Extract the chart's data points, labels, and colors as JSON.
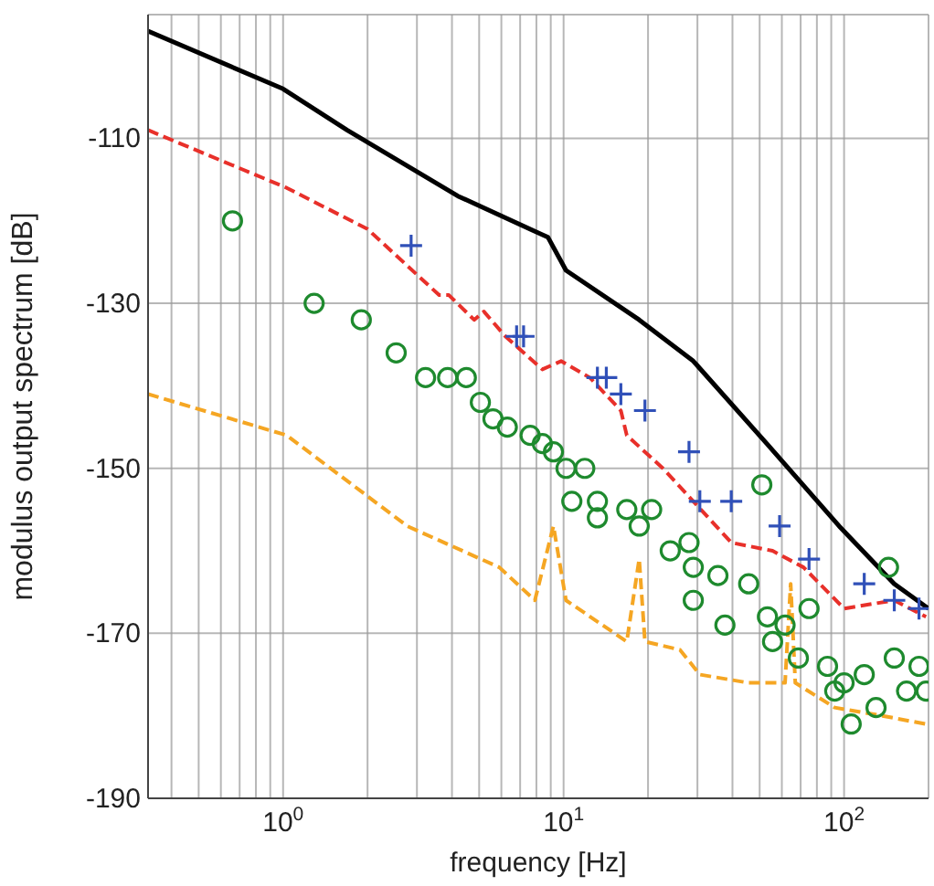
{
  "chart_data": {
    "type": "line",
    "xlabel": "frequency [Hz]",
    "ylabel": "modulus output spectrum [dB]",
    "log": "x",
    "grid": true,
    "xlim": [
      0.33,
      200
    ],
    "xticks": [
      {
        "value": 0.4,
        "label": null
      },
      {
        "value": 0.5,
        "label": null
      },
      {
        "value": 0.6,
        "label": null
      },
      {
        "value": 0.7,
        "label": null
      },
      {
        "value": 0.8,
        "label": null
      },
      {
        "value": 0.9,
        "label": null
      },
      {
        "value": 1,
        "label": "10$^{0}$"
      },
      {
        "value": 2,
        "label": null
      },
      {
        "value": 3,
        "label": null
      },
      {
        "value": 4,
        "label": null
      },
      {
        "value": 5,
        "label": null
      },
      {
        "value": 6,
        "label": null
      },
      {
        "value": 7,
        "label": null
      },
      {
        "value": 8,
        "label": null
      },
      {
        "value": 9,
        "label": null
      },
      {
        "value": 10,
        "label": "10$^{1}$"
      },
      {
        "value": 20,
        "label": null
      },
      {
        "value": 30,
        "label": null
      },
      {
        "value": 40,
        "label": null
      },
      {
        "value": 50,
        "label": null
      },
      {
        "value": 60,
        "label": null
      },
      {
        "value": 70,
        "label": null
      },
      {
        "value": 80,
        "label": null
      },
      {
        "value": 90,
        "label": null
      },
      {
        "value": 100,
        "label": "10$^{2}$"
      }
    ],
    "ylim": [
      -190,
      -95
    ],
    "yticks": [
      -190,
      -170,
      -150,
      -130,
      -110
    ],
    "series": [
      {
        "color": "#000000",
        "line_style": "solid",
        "marker": "none",
        "x": [
          0.33,
          1,
          1.69,
          4.2,
          8.8,
          10.2,
          18.6,
          29,
          53,
          96,
          151,
          200
        ],
        "values": [
          -97,
          -104,
          -109,
          -117,
          -122,
          -126,
          -132,
          -137,
          -147,
          -157,
          -164,
          -167
        ]
      },
      {
        "color": "#e8302a",
        "line_style": "dashed",
        "marker": "none",
        "x": [
          0.33,
          1.03,
          2.0,
          3.6,
          3.9,
          4.8,
          5.2,
          6.2,
          8.4,
          9.8,
          12.4,
          16,
          16.8,
          22.6,
          29,
          39.6,
          55.6,
          71.7,
          100,
          151,
          196
        ],
        "values": [
          -109,
          -116,
          -121,
          -129,
          -129,
          -132,
          -131,
          -134,
          -138,
          -137,
          -139,
          -143,
          -146,
          -150,
          -154,
          -159,
          -160,
          -162,
          -167,
          -166,
          -168
        ]
      },
      {
        "color": "#f5a623",
        "line_style": "dashed",
        "marker": "none",
        "x": [
          0.33,
          1.03,
          2.77,
          5.9,
          7.9,
          9.2,
          10.2,
          16.8,
          18.6,
          19.5,
          26,
          30.6,
          45.7,
          61.6,
          64.5,
          67,
          92.6,
          137,
          196
        ],
        "values": [
          -141,
          -146,
          -157,
          -162,
          -166,
          -157,
          -166,
          -171,
          -161,
          -171,
          -172,
          -175,
          -176,
          -176,
          -164,
          -176,
          -179,
          -180,
          -181
        ]
      },
      {
        "type": "scatter",
        "color": "#3050b8",
        "marker": "cross",
        "x": [
          2.86,
          6.8,
          7.2,
          13.2,
          14.2,
          16,
          19.5,
          28,
          30.6,
          39.6,
          58.9,
          75,
          118,
          151,
          185
        ],
        "values": [
          -123,
          -134,
          -134,
          -139,
          -139,
          -141,
          -143,
          -148,
          -154,
          -154,
          -157,
          -161,
          -164,
          -166,
          -167
        ]
      },
      {
        "type": "scatter",
        "color": "#1e8a2e",
        "marker": "circle",
        "x": [
          0.66,
          1.29,
          1.9,
          2.53,
          3.22,
          3.86,
          4.5,
          5.05,
          5.6,
          6.3,
          7.6,
          8.4,
          9.2,
          10.2,
          10.7,
          11.9,
          13.2,
          13.2,
          16.8,
          18.6,
          20.6,
          24,
          28,
          29,
          29,
          35.5,
          37.6,
          45.7,
          50.9,
          53.3,
          55.6,
          61.6,
          68.7,
          75,
          87.3,
          92.6,
          100,
          106,
          118,
          130,
          144,
          151,
          167,
          185,
          196
        ],
        "values": [
          -120,
          -130,
          -132,
          -136,
          -139,
          -139,
          -139,
          -142,
          -144,
          -145,
          -146,
          -147,
          -148,
          -150,
          -154,
          -150,
          -154,
          -156,
          -155,
          -157,
          -155,
          -160,
          -159,
          -162,
          -166,
          -163,
          -169,
          -164,
          -152,
          -168,
          -171,
          -169,
          -173,
          -167,
          -174,
          -177,
          -176,
          -181,
          -175,
          -179,
          -162,
          -173,
          -177,
          -174,
          -177
        ]
      }
    ]
  }
}
